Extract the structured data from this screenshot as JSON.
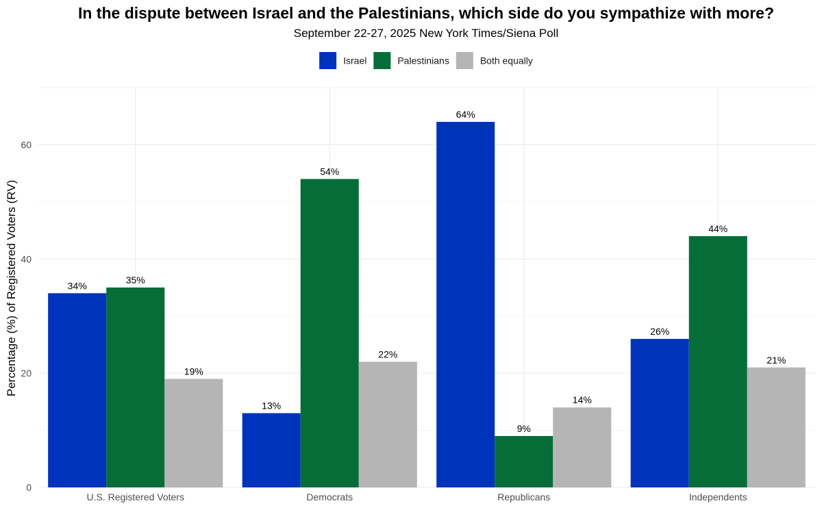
{
  "chart_data": {
    "type": "bar",
    "title": "In the dispute between Israel and the Palestinians, which side do you sympathize with more?",
    "subtitle": "September 22-27, 2025 New York Times/Siena Poll",
    "xlabel": "",
    "ylabel": "Percentage (%) of Registered Voters (RV)",
    "categories": [
      "U.S. Registered Voters",
      "Democrats",
      "Republicans",
      "Independents"
    ],
    "series": [
      {
        "name": "Israel",
        "color": "#0033BB",
        "values": [
          34,
          13,
          64,
          26
        ],
        "labels": [
          "34%",
          "13%",
          "64%",
          "26%"
        ]
      },
      {
        "name": "Palestinians",
        "color": "#066D39",
        "values": [
          35,
          54,
          9,
          44
        ],
        "labels": [
          "35%",
          "54%",
          "9%",
          "44%"
        ]
      },
      {
        "name": "Both equally",
        "color": "#B5B5B5",
        "values": [
          19,
          22,
          14,
          21
        ],
        "labels": [
          "19%",
          "22%",
          "14%",
          "21%"
        ]
      }
    ],
    "ylim": [
      0,
      70
    ],
    "yticks": [
      0,
      20,
      40,
      60
    ],
    "ytick_labels": [
      "0",
      "20",
      "40",
      "60"
    ],
    "grid": true,
    "legend_position": "top-center"
  }
}
